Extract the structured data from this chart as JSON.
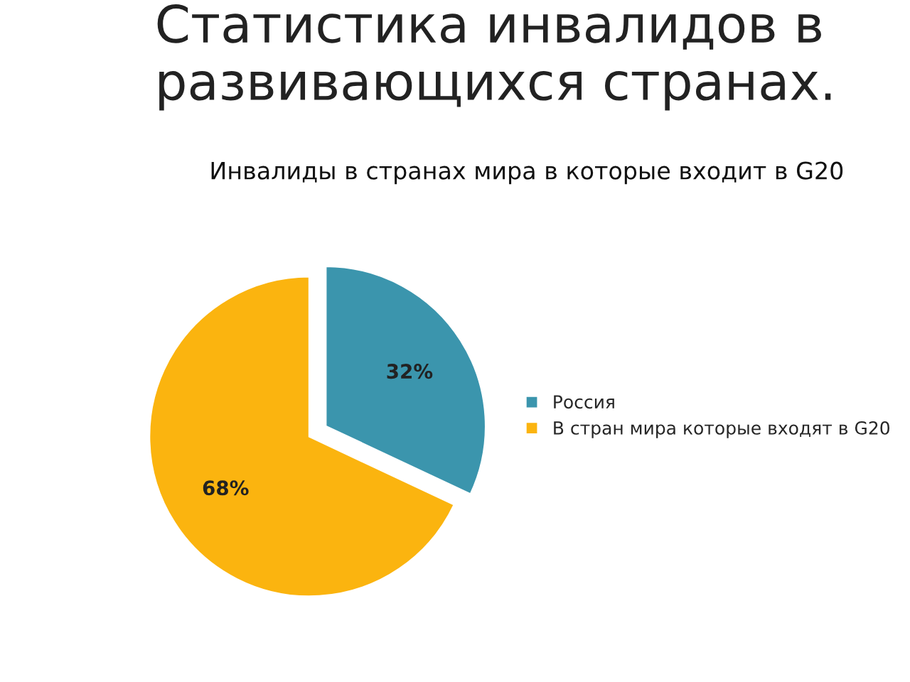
{
  "chart_data": {
    "type": "pie",
    "title": "Статистика инвалидов в развивающихся странах.",
    "subtitle": "Инвалиды в странах мира в которые входит в G20",
    "categories": [
      "Россия",
      "В стран мира которые входят в G20"
    ],
    "values": [
      32,
      68
    ],
    "colors": [
      "#3b95ad",
      "#fbb40f"
    ],
    "value_labels": [
      "32%",
      "68%"
    ],
    "legend": "right"
  }
}
